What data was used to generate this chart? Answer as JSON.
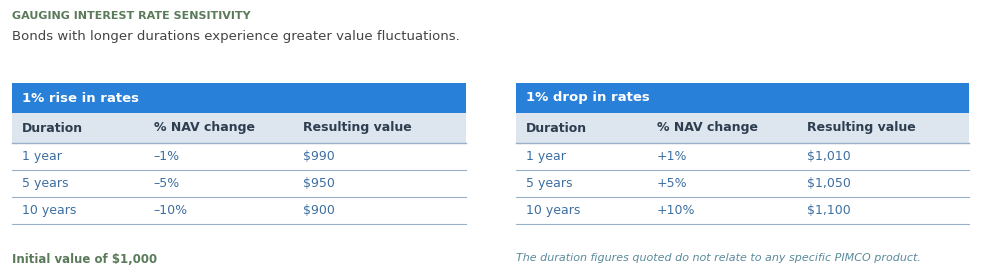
{
  "title": "GAUGING INTEREST RATE SENSITIVITY",
  "subtitle": "Bonds with longer durations experience greater value fluctuations.",
  "title_color": "#5a7a5a",
  "subtitle_color": "#444444",
  "header_bg_color": "#2980d9",
  "header_text_color": "#ffffff",
  "col_header_bg_color": "#dde5ee",
  "border_color": "#9ab0c8",
  "text_color": "#3d6fa0",
  "bold_text_color": "#2d3e50",
  "table1_header": "1% rise in rates",
  "table2_header": "1% drop in rates",
  "col_headers": [
    "Duration",
    "% NAV change",
    "Resulting value"
  ],
  "table1_rows": [
    [
      "1 year",
      "–1%",
      "$990"
    ],
    [
      "5 years",
      "–5%",
      "$950"
    ],
    [
      "10 years",
      "–10%",
      "$900"
    ]
  ],
  "table2_rows": [
    [
      "1 year",
      "+1%",
      "$1,010"
    ],
    [
      "5 years",
      "+5%",
      "$1,050"
    ],
    [
      "10 years",
      "+10%",
      "$1,100"
    ]
  ],
  "footnote_left": "Initial value of $1,000",
  "footnote_right": "The duration figures quoted do not relate to any specific PIMCO product.",
  "footnote_left_color": "#5a7a5a",
  "footnote_right_color": "#5a8a9a",
  "background_color": "#ffffff",
  "fig_width": 9.81,
  "fig_height": 2.75,
  "dpi": 100
}
